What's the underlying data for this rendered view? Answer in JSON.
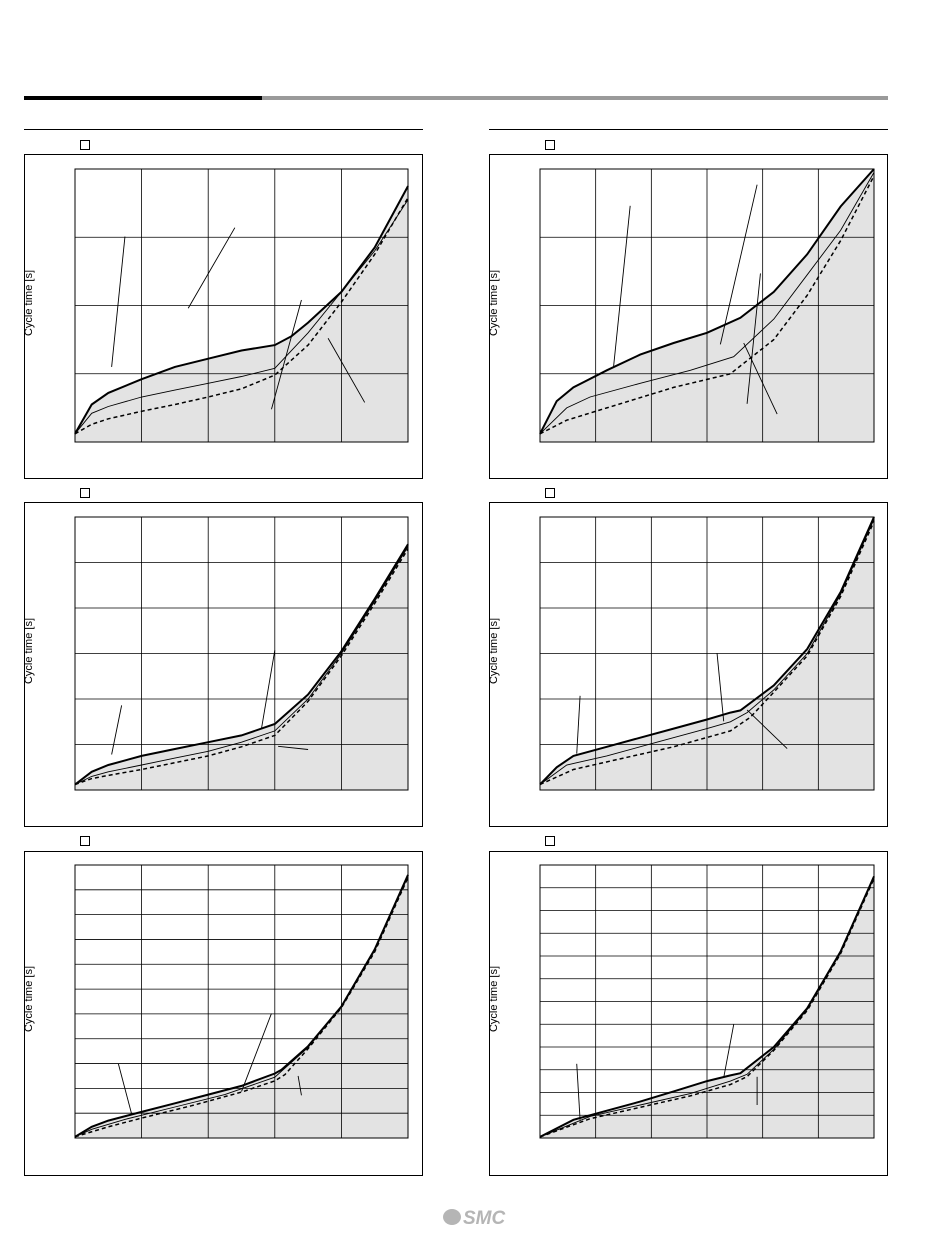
{
  "colors": {
    "fill": "#e3e3e3",
    "grid": "#000000",
    "line": "#000000",
    "brand": "#b5b5b5"
  },
  "logo": {
    "text": "SMC"
  },
  "chart_data": [
    {
      "type": "line",
      "ylabel": "Cycle time [s]",
      "grid": true,
      "xlim": [
        0,
        100
      ],
      "ylim": [
        0,
        4
      ],
      "x_gridlines": 5,
      "y_gridlines": 4,
      "shaded_region": true,
      "series": [
        {
          "style": "solid-thick",
          "points": [
            [
              0,
              0.12
            ],
            [
              5,
              0.55
            ],
            [
              10,
              0.72
            ],
            [
              20,
              0.92
            ],
            [
              30,
              1.1
            ],
            [
              40,
              1.22
            ],
            [
              50,
              1.34
            ],
            [
              60,
              1.42
            ],
            [
              65,
              1.55
            ],
            [
              70,
              1.75
            ],
            [
              80,
              2.2
            ],
            [
              90,
              2.85
            ],
            [
              100,
              3.75
            ]
          ]
        },
        {
          "style": "solid-thin",
          "points": [
            [
              0,
              0.12
            ],
            [
              5,
              0.42
            ],
            [
              10,
              0.52
            ],
            [
              20,
              0.66
            ],
            [
              30,
              0.76
            ],
            [
              40,
              0.86
            ],
            [
              50,
              0.96
            ],
            [
              60,
              1.08
            ],
            [
              70,
              1.6
            ],
            [
              80,
              2.2
            ],
            [
              90,
              2.8
            ],
            [
              100,
              3.55
            ]
          ]
        },
        {
          "style": "dashed",
          "points": [
            [
              0,
              0.12
            ],
            [
              5,
              0.26
            ],
            [
              10,
              0.34
            ],
            [
              20,
              0.45
            ],
            [
              30,
              0.55
            ],
            [
              40,
              0.66
            ],
            [
              50,
              0.78
            ],
            [
              60,
              0.98
            ],
            [
              70,
              1.42
            ],
            [
              80,
              2.05
            ],
            [
              90,
              2.75
            ],
            [
              100,
              3.58
            ]
          ]
        }
      ],
      "callouts": [
        [
          59,
          0.48,
          68,
          2.08
        ],
        [
          76,
          1.52,
          87,
          0.58
        ],
        [
          11,
          1.1,
          15,
          3.01
        ],
        [
          34,
          1.96,
          48,
          3.14
        ]
      ]
    },
    {
      "type": "line",
      "ylabel": "Cycle time [s]",
      "grid": true,
      "xlim": [
        0,
        100
      ],
      "ylim": [
        0,
        4
      ],
      "x_gridlines": 6,
      "y_gridlines": 4,
      "shaded_region": true,
      "series": [
        {
          "style": "solid-thick",
          "points": [
            [
              0,
              0.12
            ],
            [
              5,
              0.6
            ],
            [
              10,
              0.8
            ],
            [
              20,
              1.05
            ],
            [
              30,
              1.28
            ],
            [
              40,
              1.45
            ],
            [
              50,
              1.6
            ],
            [
              60,
              1.82
            ],
            [
              70,
              2.2
            ],
            [
              80,
              2.75
            ],
            [
              90,
              3.45
            ],
            [
              100,
              4.0
            ]
          ]
        },
        {
          "style": "solid-thin",
          "points": [
            [
              0,
              0.12
            ],
            [
              8,
              0.5
            ],
            [
              15,
              0.66
            ],
            [
              30,
              0.86
            ],
            [
              45,
              1.05
            ],
            [
              58,
              1.25
            ],
            [
              70,
              1.8
            ],
            [
              80,
              2.45
            ],
            [
              90,
              3.1
            ],
            [
              100,
              3.95
            ]
          ]
        },
        {
          "style": "dashed",
          "points": [
            [
              0,
              0.12
            ],
            [
              8,
              0.32
            ],
            [
              20,
              0.5
            ],
            [
              40,
              0.8
            ],
            [
              57,
              1.0
            ],
            [
              70,
              1.5
            ],
            [
              80,
              2.15
            ],
            [
              90,
              2.95
            ],
            [
              100,
              3.9
            ]
          ]
        }
      ],
      "callouts": [
        [
          62,
          0.56,
          66,
          2.47
        ],
        [
          61,
          1.45,
          71,
          0.41
        ],
        [
          22,
          1.09,
          27,
          3.46
        ],
        [
          54,
          1.43,
          65,
          3.77
        ]
      ]
    },
    {
      "type": "line",
      "ylabel": "Cycle time [s]",
      "grid": true,
      "xlim": [
        0,
        100
      ],
      "ylim": [
        0,
        6
      ],
      "x_gridlines": 5,
      "y_gridlines": 6,
      "shaded_region": true,
      "series": [
        {
          "style": "solid-thick",
          "points": [
            [
              0,
              0.12
            ],
            [
              5,
              0.4
            ],
            [
              10,
              0.55
            ],
            [
              20,
              0.75
            ],
            [
              30,
              0.9
            ],
            [
              40,
              1.05
            ],
            [
              50,
              1.2
            ],
            [
              60,
              1.45
            ],
            [
              70,
              2.1
            ],
            [
              80,
              3.05
            ],
            [
              90,
              4.2
            ],
            [
              100,
              5.4
            ]
          ]
        },
        {
          "style": "solid-thin",
          "points": [
            [
              0,
              0.12
            ],
            [
              5,
              0.3
            ],
            [
              10,
              0.4
            ],
            [
              20,
              0.55
            ],
            [
              30,
              0.7
            ],
            [
              40,
              0.85
            ],
            [
              50,
              1.05
            ],
            [
              60,
              1.3
            ],
            [
              70,
              2.0
            ],
            [
              80,
              3.0
            ],
            [
              90,
              4.15
            ],
            [
              100,
              5.35
            ]
          ]
        },
        {
          "style": "dashed",
          "points": [
            [
              0,
              0.12
            ],
            [
              5,
              0.25
            ],
            [
              10,
              0.32
            ],
            [
              20,
              0.45
            ],
            [
              30,
              0.6
            ],
            [
              40,
              0.75
            ],
            [
              50,
              0.95
            ],
            [
              60,
              1.2
            ],
            [
              70,
              1.95
            ],
            [
              80,
              2.95
            ],
            [
              90,
              4.1
            ],
            [
              100,
              5.3
            ]
          ]
        }
      ],
      "callouts": [
        [
          61,
          0.96,
          70,
          0.89
        ],
        [
          11,
          0.78,
          14,
          1.86
        ],
        [
          56,
          1.35,
          60,
          3.07
        ]
      ]
    },
    {
      "type": "line",
      "ylabel": "Cycle time [s]",
      "grid": true,
      "xlim": [
        0,
        100
      ],
      "ylim": [
        0,
        6
      ],
      "x_gridlines": 6,
      "y_gridlines": 6,
      "shaded_region": true,
      "series": [
        {
          "style": "solid-thick",
          "points": [
            [
              0,
              0.12
            ],
            [
              5,
              0.5
            ],
            [
              10,
              0.75
            ],
            [
              20,
              0.95
            ],
            [
              30,
              1.15
            ],
            [
              40,
              1.35
            ],
            [
              50,
              1.55
            ],
            [
              57,
              1.7
            ],
            [
              60,
              1.75
            ],
            [
              70,
              2.3
            ],
            [
              80,
              3.1
            ],
            [
              90,
              4.35
            ],
            [
              100,
              6.0
            ]
          ]
        },
        {
          "style": "solid-thin",
          "points": [
            [
              0,
              0.12
            ],
            [
              8,
              0.55
            ],
            [
              20,
              0.75
            ],
            [
              35,
              1.05
            ],
            [
              50,
              1.35
            ],
            [
              57,
              1.5
            ],
            [
              62,
              1.7
            ],
            [
              70,
              2.2
            ],
            [
              80,
              3.0
            ],
            [
              90,
              4.3
            ],
            [
              100,
              5.95
            ]
          ]
        },
        {
          "style": "dashed",
          "points": [
            [
              0,
              0.12
            ],
            [
              10,
              0.45
            ],
            [
              25,
              0.7
            ],
            [
              40,
              0.95
            ],
            [
              57,
              1.3
            ],
            [
              63,
              1.6
            ],
            [
              70,
              2.15
            ],
            [
              80,
              2.95
            ],
            [
              90,
              4.25
            ],
            [
              100,
              5.9
            ]
          ]
        }
      ],
      "callouts": [
        [
          62,
          1.76,
          74,
          0.91
        ],
        [
          55,
          1.51,
          53,
          3.01
        ],
        [
          11,
          0.8,
          12,
          2.07
        ]
      ]
    },
    {
      "type": "line",
      "ylabel": "Cycle time [s]",
      "grid": true,
      "xlim": [
        0,
        100
      ],
      "ylim": [
        0,
        11
      ],
      "x_gridlines": 5,
      "y_gridlines": 11,
      "shaded_region": true,
      "series": [
        {
          "style": "solid-thick",
          "points": [
            [
              0,
              0.05
            ],
            [
              5,
              0.45
            ],
            [
              10,
              0.7
            ],
            [
              20,
              1.05
            ],
            [
              30,
              1.4
            ],
            [
              40,
              1.75
            ],
            [
              50,
              2.1
            ],
            [
              60,
              2.6
            ],
            [
              62,
              2.75
            ],
            [
              70,
              3.7
            ],
            [
              80,
              5.3
            ],
            [
              90,
              7.6
            ],
            [
              100,
              10.6
            ]
          ]
        },
        {
          "style": "solid-thin",
          "points": [
            [
              0,
              0.05
            ],
            [
              5,
              0.35
            ],
            [
              15,
              0.75
            ],
            [
              30,
              1.25
            ],
            [
              45,
              1.75
            ],
            [
              60,
              2.45
            ],
            [
              70,
              3.65
            ],
            [
              80,
              5.28
            ],
            [
              90,
              7.55
            ],
            [
              100,
              10.55
            ]
          ]
        },
        {
          "style": "dashed",
          "points": [
            [
              0,
              0.05
            ],
            [
              10,
              0.45
            ],
            [
              20,
              0.8
            ],
            [
              35,
              1.3
            ],
            [
              50,
              1.85
            ],
            [
              60,
              2.3
            ],
            [
              63,
              2.55
            ],
            [
              70,
              3.6
            ],
            [
              80,
              5.25
            ],
            [
              90,
              7.5
            ],
            [
              100,
              10.5
            ]
          ]
        }
      ],
      "callouts": [
        [
          50,
          1.87,
          59,
          5.02
        ],
        [
          67,
          2.5,
          68,
          1.72
        ],
        [
          17,
          0.97,
          13,
          3.0
        ]
      ]
    },
    {
      "type": "line",
      "ylabel": "Cycle time [s]",
      "grid": true,
      "xlim": [
        0,
        100
      ],
      "ylim": [
        0,
        12
      ],
      "x_gridlines": 6,
      "y_gridlines": 12,
      "shaded_region": true,
      "series": [
        {
          "style": "solid-thick",
          "points": [
            [
              0,
              0.05
            ],
            [
              10,
              0.8
            ],
            [
              20,
              1.2
            ],
            [
              30,
              1.6
            ],
            [
              40,
              2.05
            ],
            [
              50,
              2.5
            ],
            [
              57,
              2.75
            ],
            [
              60,
              2.85
            ],
            [
              70,
              4.0
            ],
            [
              80,
              5.7
            ],
            [
              90,
              8.2
            ],
            [
              100,
              11.5
            ]
          ]
        },
        {
          "style": "solid-thin",
          "points": [
            [
              0,
              0.05
            ],
            [
              15,
              0.95
            ],
            [
              30,
              1.45
            ],
            [
              45,
              1.95
            ],
            [
              57,
              2.5
            ],
            [
              62,
              2.8
            ],
            [
              70,
              3.9
            ],
            [
              80,
              5.65
            ],
            [
              90,
              8.15
            ],
            [
              100,
              11.45
            ]
          ]
        },
        {
          "style": "dashed",
          "points": [
            [
              0,
              0.05
            ],
            [
              15,
              0.85
            ],
            [
              30,
              1.35
            ],
            [
              45,
              1.85
            ],
            [
              57,
              2.35
            ],
            [
              62,
              2.7
            ],
            [
              70,
              3.85
            ],
            [
              80,
              5.6
            ],
            [
              90,
              8.1
            ],
            [
              100,
              11.4
            ]
          ]
        }
      ],
      "callouts": [
        [
          55,
          2.65,
          58,
          4.99
        ],
        [
          65,
          2.69,
          65,
          1.45
        ],
        [
          12,
          0.8,
          11,
          3.26
        ]
      ]
    }
  ]
}
